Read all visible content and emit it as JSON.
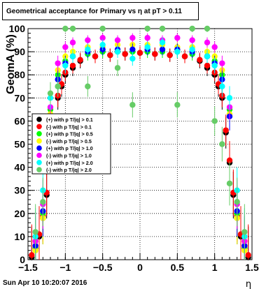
{
  "window": {
    "title": "Geometrical acceptance for Primary vs   η at pT > 0.11",
    "footer": "Sun Apr 10 10:20:07 2016"
  },
  "chart_data": {
    "type": "scatter",
    "title": "Geometrical acceptance for Primary vs   η at pT > 0.11",
    "xlabel": "η",
    "ylabel": "GeomA (%)",
    "xlim": [
      -1.5,
      1.5
    ],
    "ylim": [
      0,
      100
    ],
    "x_ticks": [
      "−1.5",
      "−1",
      "−0.5",
      "0",
      "0.5",
      "1",
      "1.5"
    ],
    "y_ticks": [
      "0",
      "10",
      "20",
      "30",
      "40",
      "50",
      "60",
      "70",
      "80",
      "90",
      "100"
    ],
    "grid": true,
    "legend_position": "left-middle",
    "series": [
      {
        "name": "(+) with p T/|q| > 0.1",
        "color": "#000000",
        "x": [
          -1.45,
          -1.35,
          -1.3,
          -1.25,
          -1.2,
          -1.1,
          -1.05,
          -1,
          -0.9,
          -0.8,
          -0.6,
          -0.4,
          -0.2,
          0,
          0.2,
          0.4,
          0.6,
          0.8,
          0.9,
          1,
          1.05,
          1.1,
          1.15,
          1.2,
          1.25,
          1.3,
          1.35,
          1.45
        ],
        "y": [
          1,
          10,
          18,
          28,
          55,
          70,
          75,
          80,
          83,
          86,
          88,
          88.5,
          89,
          89.5,
          89,
          88.5,
          88,
          86,
          83,
          80,
          75,
          70,
          55,
          42,
          28,
          18,
          10,
          1
        ]
      },
      {
        "name": "(-) with p T/|q| > 0.1",
        "color": "#ff0000",
        "x": [
          -1.45,
          -1.35,
          -1.3,
          -1.25,
          -1.2,
          -1.1,
          -1.05,
          -1,
          -0.9,
          -0.8,
          -0.6,
          -0.4,
          -0.2,
          0,
          0.2,
          0.4,
          0.6,
          0.8,
          0.9,
          1,
          1.05,
          1.1,
          1.15,
          1.2,
          1.25,
          1.3,
          1.35,
          1.45
        ],
        "y": [
          2,
          11,
          19,
          29,
          56,
          71,
          76,
          81,
          84,
          86.5,
          88,
          88.5,
          89,
          89.5,
          89,
          88.5,
          88,
          86.5,
          84,
          81,
          76,
          71,
          56,
          43,
          29,
          19,
          11,
          2
        ]
      },
      {
        "name": "(+) with p T/|q| > 0.5",
        "color": "#00ff00",
        "x": [
          -1.4,
          -1.3,
          -1.2,
          -1.1,
          -1,
          -0.9,
          -0.7,
          -0.5,
          -0.3,
          -0.1,
          0.1,
          0.3,
          0.5,
          0.7,
          0.9,
          1,
          1.1,
          1.2,
          1.3,
          1.4
        ],
        "y": [
          5,
          20,
          65,
          80,
          86,
          88,
          89,
          90,
          90,
          90,
          90,
          90,
          90,
          89,
          88,
          86,
          80,
          65,
          20,
          5
        ]
      },
      {
        "name": "(-) with p T/|q| > 0.5",
        "color": "#ffff00",
        "x": [
          -1.4,
          -1.3,
          -1.2,
          -1.1,
          -1,
          -0.9,
          -0.7,
          -0.5,
          -0.3,
          -0.1,
          0.1,
          0.3,
          0.5,
          0.7,
          0.9,
          1,
          1.1,
          1.2,
          1.3,
          1.4
        ],
        "y": [
          4,
          18,
          63,
          82,
          88,
          90,
          92,
          92,
          93,
          93,
          93,
          93,
          92,
          92,
          90,
          88,
          82,
          63,
          18,
          4
        ]
      },
      {
        "name": "(+) with p T/|q| > 1.0",
        "color": "#0000ff",
        "x": [
          -1.4,
          -1.3,
          -1.2,
          -1.1,
          -1,
          -0.9,
          -0.7,
          -0.5,
          -0.3,
          -0.1,
          0.1,
          0.3,
          0.5,
          0.7,
          0.9,
          1,
          1.1,
          1.2,
          1.3,
          1.4
        ],
        "y": [
          6,
          21,
          62,
          78,
          85,
          88,
          90,
          91,
          91,
          91,
          91,
          91,
          91,
          90,
          88,
          85,
          78,
          62,
          21,
          6
        ]
      },
      {
        "name": "(-) with p T/|q| > 1.0",
        "color": "#ff00ff",
        "x": [
          -1.4,
          -1.3,
          -1.2,
          -1.1,
          -1,
          -0.9,
          -0.7,
          -0.5,
          -0.3,
          -0.1,
          0.1,
          0.3,
          0.5,
          0.7,
          0.9,
          1,
          1.1,
          1.2,
          1.3,
          1.4
        ],
        "y": [
          8,
          24,
          66,
          85,
          92,
          94,
          95,
          96,
          95,
          96,
          96,
          95,
          96,
          95,
          94,
          92,
          85,
          66,
          24,
          8
        ]
      },
      {
        "name": "(+) with p T/|q| > 2.0",
        "color": "#00ffff",
        "x": [
          -1.4,
          -1.3,
          -1.2,
          -1.1,
          -1,
          -0.9,
          -0.7,
          -0.5,
          -0.3,
          -0.1,
          0.1,
          0.3,
          0.5,
          0.7,
          0.9,
          1,
          1.1,
          1.2,
          1.3,
          1.4
        ],
        "y": [
          10,
          30,
          70,
          75,
          84,
          88,
          91,
          93,
          90,
          87,
          92,
          94,
          90,
          91,
          88,
          84,
          75,
          70,
          30,
          10
        ]
      },
      {
        "name": "(-) with p T/|q| > 2.0",
        "color": "#66cc66",
        "x": [
          -1.4,
          -1.3,
          -1.2,
          -1.1,
          -1,
          -0.9,
          -0.7,
          -0.5,
          -0.3,
          -0.1,
          0.1,
          0.3,
          0.5,
          0.7,
          0.9,
          1,
          1.1,
          1.2,
          1.3,
          1.4
        ],
        "y": [
          12,
          25,
          72,
          75,
          100,
          100,
          75,
          100,
          83,
          67,
          100,
          100,
          67,
          100,
          100,
          60,
          50,
          33,
          25,
          12
        ]
      }
    ]
  }
}
